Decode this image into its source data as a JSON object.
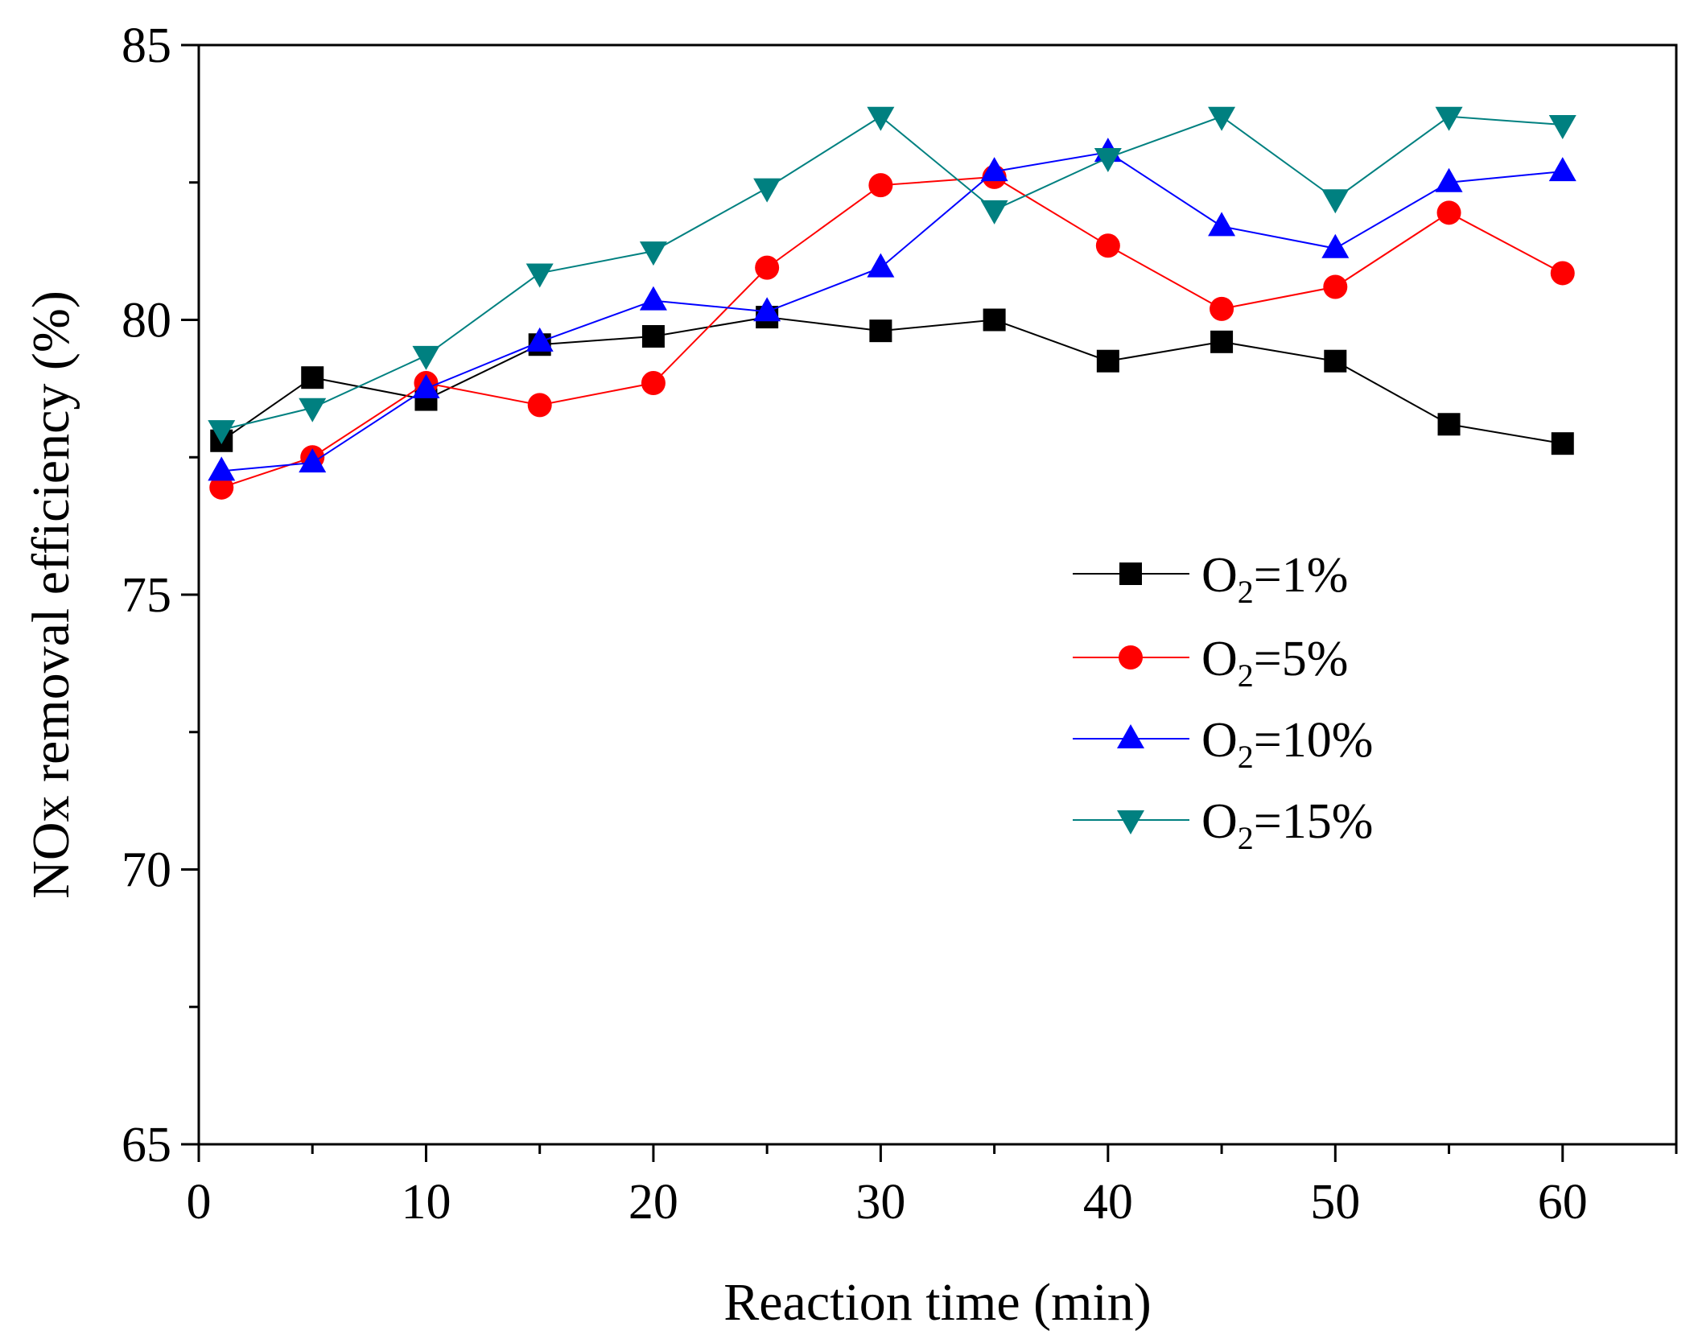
{
  "chart_data": {
    "type": "line",
    "title": "",
    "xlabel": "Reaction time (min)",
    "ylabel": "NOx removal efficiency (%)",
    "xlim": [
      0,
      65
    ],
    "ylim": [
      65,
      85
    ],
    "xticks": [
      0,
      10,
      20,
      30,
      40,
      50,
      60
    ],
    "yticks": [
      65,
      70,
      75,
      80,
      85
    ],
    "grid": false,
    "legend_position": "center-right",
    "x": [
      1,
      5,
      10,
      15,
      20,
      25,
      30,
      35,
      40,
      45,
      50,
      55,
      60
    ],
    "series": [
      {
        "name": "O2=1%",
        "label_base": "O",
        "label_sub": "2",
        "label_rest": "=1%",
        "color": "#000000",
        "marker": "square",
        "values": [
          77.8,
          78.95,
          78.55,
          79.55,
          79.7,
          80.05,
          79.8,
          80.0,
          79.25,
          79.6,
          79.25,
          78.1,
          77.75
        ]
      },
      {
        "name": "O2=5%",
        "label_base": "O",
        "label_sub": "2",
        "label_rest": "=5%",
        "color": "#ff0000",
        "marker": "circle",
        "values": [
          76.95,
          77.5,
          78.85,
          78.45,
          78.85,
          80.95,
          82.45,
          82.6,
          81.35,
          80.2,
          80.6,
          81.95,
          80.85
        ]
      },
      {
        "name": "O2=10%",
        "label_base": "O",
        "label_sub": "2",
        "label_rest": "=10%",
        "color": "#0000ff",
        "marker": "triangle-up",
        "values": [
          77.25,
          77.4,
          78.75,
          79.6,
          80.35,
          80.15,
          80.95,
          82.7,
          83.05,
          81.7,
          81.3,
          82.5,
          82.7
        ]
      },
      {
        "name": "O2=15%",
        "label_base": "O",
        "label_sub": "2",
        "label_rest": "=15%",
        "color": "#008080",
        "marker": "triangle-down",
        "values": [
          78.0,
          78.4,
          79.35,
          80.85,
          81.25,
          82.4,
          83.7,
          82.0,
          82.95,
          83.7,
          82.2,
          83.7,
          83.55
        ]
      }
    ]
  }
}
